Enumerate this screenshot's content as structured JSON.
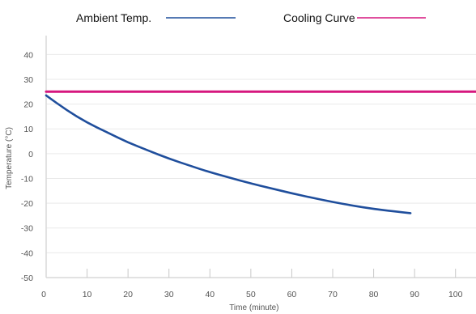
{
  "chart_data": {
    "type": "line",
    "xlabel": "Time (minute)",
    "ylabel": "Temperature (°C)",
    "xlim": [
      0,
      105
    ],
    "ylim": [
      -50,
      45
    ],
    "x_ticks": [
      0,
      10,
      20,
      30,
      40,
      50,
      60,
      70,
      80,
      90,
      100
    ],
    "y_ticks": [
      -50,
      -40,
      -30,
      -20,
      -10,
      0,
      10,
      20,
      30,
      40
    ],
    "grid": "horizontal",
    "legend_position": "top",
    "series": [
      {
        "name": "Ambient Temp.",
        "color": "#1f4e9c",
        "x": [
          0,
          5,
          10,
          15,
          20,
          25,
          30,
          35,
          40,
          45,
          50,
          55,
          60,
          65,
          70,
          75,
          80,
          85,
          89
        ],
        "y": [
          23.5,
          17.5,
          12.5,
          8.5,
          4.5,
          1.2,
          -2,
          -4.8,
          -7.5,
          -9.8,
          -12,
          -14,
          -16,
          -17.8,
          -19.5,
          -21,
          -22.3,
          -23.3,
          -24
        ]
      },
      {
        "name": "Cooling Curve",
        "color": "#d6177e",
        "x": [
          0,
          105
        ],
        "y": [
          25,
          25
        ]
      }
    ]
  }
}
